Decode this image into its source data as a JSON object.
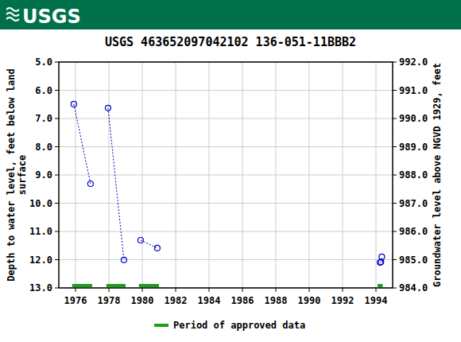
{
  "header_logo": "USGS",
  "chart_data": {
    "type": "line",
    "title": "USGS 463652097042102 136-051-11BBB2",
    "ylabel": "Depth to water level, feet below land surface",
    "y2label": "Groundwater level above NGVD 1929, feet",
    "xlim": [
      1975,
      1995
    ],
    "xticks": [
      1976,
      1978,
      1980,
      1982,
      1984,
      1986,
      1988,
      1990,
      1992,
      1994
    ],
    "ylim": [
      13,
      5
    ],
    "yticks": [
      {
        "value": 5,
        "label": "5.0"
      },
      {
        "value": 6,
        "label": "6.0"
      },
      {
        "value": 7,
        "label": "7.0"
      },
      {
        "value": 8,
        "label": "8.0"
      },
      {
        "value": 9,
        "label": "9.0"
      },
      {
        "value": 10,
        "label": "10.0"
      },
      {
        "value": 11,
        "label": "11.0"
      },
      {
        "value": 12,
        "label": "12.0"
      },
      {
        "value": 13,
        "label": "13.0"
      }
    ],
    "y2lim": [
      984,
      992
    ],
    "y2ticks": [
      {
        "value": 984,
        "label": "984.0"
      },
      {
        "value": 985,
        "label": "985.0"
      },
      {
        "value": 986,
        "label": "986.0"
      },
      {
        "value": 987,
        "label": "987.0"
      },
      {
        "value": 988,
        "label": "988.0"
      },
      {
        "value": 989,
        "label": "989.0"
      },
      {
        "value": 990,
        "label": "990.0"
      },
      {
        "value": 991,
        "label": "991.0"
      },
      {
        "value": 992,
        "label": "992.0"
      }
    ],
    "grid": true,
    "x": [
      1975.9,
      1976.9,
      null,
      1977.95,
      1978.9,
      null,
      1979.9,
      1980.9,
      null,
      1994.25,
      1994.3,
      1994.35
    ],
    "series": [
      {
        "color": "#0000cc",
        "marker": "open-circle",
        "line_style": "dotted",
        "values": [
          6.49,
          9.31,
          null,
          6.63,
          12.01,
          null,
          11.31,
          11.59,
          null,
          12.1,
          12.08,
          11.9
        ]
      }
    ],
    "approved_periods": {
      "name": "Period of approved data",
      "color": "#1e9e1e",
      "ranges": [
        [
          1975.8,
          1977.0
        ],
        [
          1977.85,
          1979.0
        ],
        [
          1979.8,
          1981.0
        ],
        [
          1994.1,
          1994.4
        ]
      ]
    },
    "legend": "bottom"
  }
}
